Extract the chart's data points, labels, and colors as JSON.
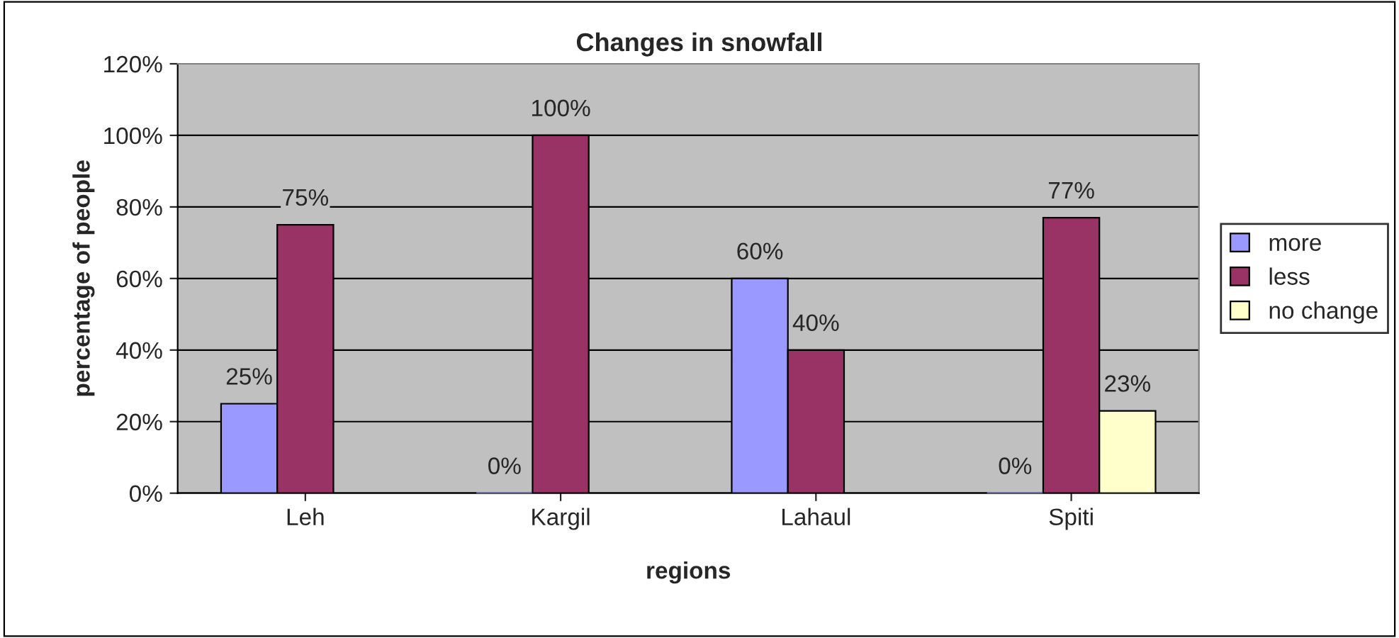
{
  "chart_data": {
    "type": "bar",
    "title": "Changes in snowfall",
    "xlabel": "regions",
    "ylabel": "percentage of people",
    "categories": [
      "Leh",
      "Kargil",
      "Lahaul",
      "Spiti"
    ],
    "series": [
      {
        "name": "more",
        "color": "#9999ff",
        "values": [
          25,
          0,
          60,
          0
        ],
        "value_labels": [
          "25%",
          "0%",
          "60%",
          "0%"
        ]
      },
      {
        "name": "less",
        "color": "#993366",
        "values": [
          75,
          100,
          40,
          77
        ],
        "value_labels": [
          "75%",
          "100%",
          "40%",
          "77%"
        ]
      },
      {
        "name": "no change",
        "color": "#ffffcc",
        "values": [
          null,
          null,
          null,
          23
        ],
        "value_labels": [
          null,
          null,
          null,
          "23%"
        ]
      }
    ],
    "ylim": [
      0,
      120
    ],
    "yticks": [
      {
        "value": 0,
        "label": "0%"
      },
      {
        "value": 20,
        "label": "20%"
      },
      {
        "value": 40,
        "label": "40%"
      },
      {
        "value": 60,
        "label": "60%"
      },
      {
        "value": 80,
        "label": "80%"
      },
      {
        "value": 100,
        "label": "100%"
      },
      {
        "value": 120,
        "label": "120%"
      }
    ],
    "grid": "y",
    "legend": "right"
  }
}
